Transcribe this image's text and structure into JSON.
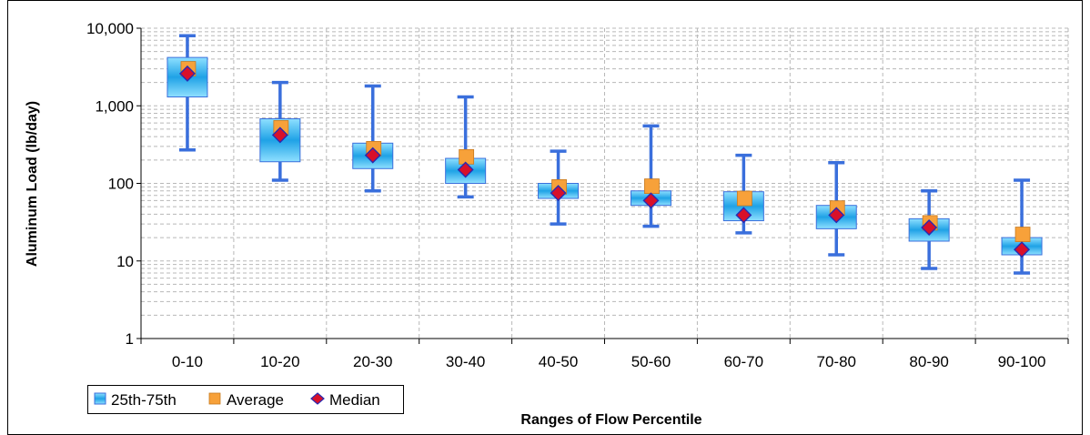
{
  "chart_data": {
    "type": "box",
    "xlabel": "Ranges of Flow Percentile",
    "ylabel": "Aluminum Load (lb/day)",
    "y_scale": "log",
    "ylim": [
      1,
      10000
    ],
    "y_ticks": [
      {
        "value": 1,
        "label": "1"
      },
      {
        "value": 10,
        "label": "10"
      },
      {
        "value": 100,
        "label": "100"
      },
      {
        "value": 1000,
        "label": "1,000"
      },
      {
        "value": 10000,
        "label": "10,000"
      }
    ],
    "grid": true,
    "legend_position": "bottom-left",
    "legend": [
      {
        "key": "iqr",
        "label": "25th-75th"
      },
      {
        "key": "average",
        "label": "Average"
      },
      {
        "key": "median",
        "label": "Median"
      }
    ],
    "categories": [
      "0-10",
      "10-20",
      "20-30",
      "30-40",
      "40-50",
      "50-60",
      "60-70",
      "70-80",
      "80-90",
      "90-100"
    ],
    "boxes": [
      {
        "min": 270,
        "q1": 1300,
        "median": 2600,
        "q3": 4200,
        "max": 8000,
        "average": 3000
      },
      {
        "min": 110,
        "q1": 190,
        "median": 420,
        "q3": 680,
        "max": 2000,
        "average": 520
      },
      {
        "min": 80,
        "q1": 155,
        "median": 230,
        "q3": 330,
        "max": 1800,
        "average": 280
      },
      {
        "min": 67,
        "q1": 100,
        "median": 150,
        "q3": 210,
        "max": 1300,
        "average": 220
      },
      {
        "min": 30,
        "q1": 64,
        "median": 75,
        "q3": 100,
        "max": 260,
        "average": 90
      },
      {
        "min": 28,
        "q1": 52,
        "median": 60,
        "q3": 80,
        "max": 550,
        "average": 92
      },
      {
        "min": 23,
        "q1": 33,
        "median": 39,
        "q3": 78,
        "max": 230,
        "average": 64
      },
      {
        "min": 12,
        "q1": 26,
        "median": 39,
        "q3": 52,
        "max": 185,
        "average": 48
      },
      {
        "min": 8,
        "q1": 18,
        "median": 27,
        "q3": 35,
        "max": 80,
        "average": 31
      },
      {
        "min": 7,
        "q1": 12,
        "median": 14,
        "q3": 20,
        "max": 110,
        "average": 22
      }
    ],
    "colors": {
      "whisker": "#3a6fdc",
      "box_light": "#8fe0ff",
      "box_dark": "#1fa2e6",
      "average": "#f7a13a",
      "median": "#d8102a",
      "median_outline": "#2a2ab0",
      "grid": "#b8b8b8"
    }
  }
}
